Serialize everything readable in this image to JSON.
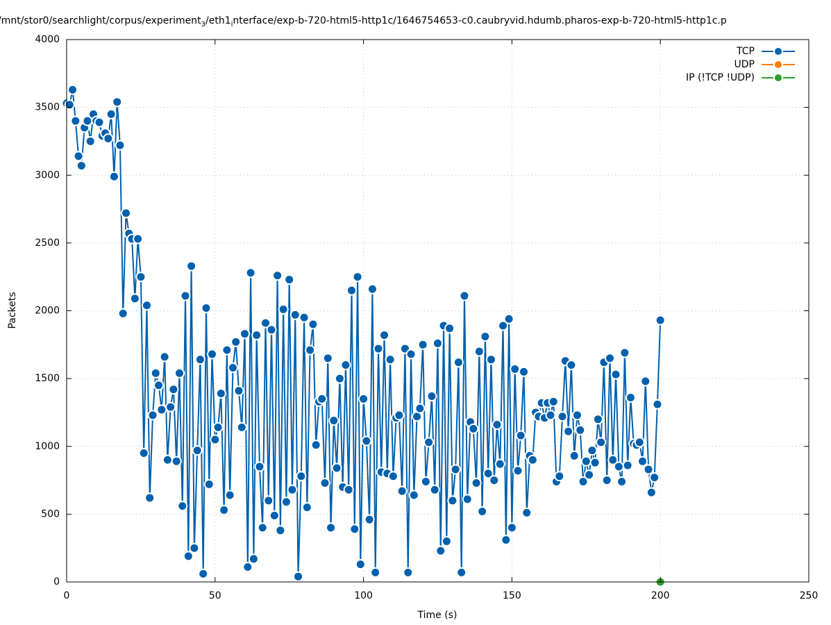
{
  "chart_data": {
    "type": "line",
    "title": [
      "/mnt/stor0/searchlight/corpus/experiment",
      "3",
      "/eth1",
      "i",
      "nterface/exp-b-720-html5-http1c/1646754653-c0.caubryvid.hdumb.pharos-exp-b-720-html5-http1c.p"
    ],
    "x_label": "Time (s)",
    "y_label": "Packets",
    "xlim": [
      0,
      250
    ],
    "xticks": [
      0,
      50,
      100,
      150,
      200,
      250
    ],
    "ylim": [
      0,
      4000
    ],
    "yticks": [
      0,
      500,
      1000,
      1500,
      2000,
      2500,
      3000,
      3500,
      4000
    ],
    "grid": true,
    "legend": "top-right",
    "series": [
      {
        "name": "TCP",
        "color": "#0060ad",
        "x": [
          0,
          1,
          2,
          3,
          4,
          5,
          6,
          7,
          8,
          9,
          10,
          11,
          12,
          13,
          14,
          15,
          16,
          17,
          18,
          19,
          20,
          21,
          22,
          23,
          24,
          25,
          26,
          27,
          28,
          29,
          30,
          31,
          32,
          33,
          34,
          35,
          36,
          37,
          38,
          39,
          40,
          41,
          42,
          43,
          44,
          45,
          46,
          47,
          48,
          49,
          50,
          51,
          52,
          53,
          54,
          55,
          56,
          57,
          58,
          59,
          60,
          61,
          62,
          63,
          64,
          65,
          66,
          67,
          68,
          69,
          70,
          71,
          72,
          73,
          74,
          75,
          76,
          77,
          78,
          79,
          80,
          81,
          82,
          83,
          84,
          85,
          86,
          87,
          88,
          89,
          90,
          91,
          92,
          93,
          94,
          95,
          96,
          97,
          98,
          99,
          100,
          101,
          102,
          103,
          104,
          105,
          106,
          107,
          108,
          109,
          110,
          111,
          112,
          113,
          114,
          115,
          116,
          117,
          118,
          119,
          120,
          121,
          122,
          123,
          124,
          125,
          126,
          127,
          128,
          129,
          130,
          131,
          132,
          133,
          134,
          135,
          136,
          137,
          138,
          139,
          140,
          141,
          142,
          143,
          144,
          145,
          146,
          147,
          148,
          149,
          150,
          151,
          152,
          153,
          154,
          155,
          156,
          157,
          158,
          159,
          160,
          161,
          162,
          163,
          164,
          165,
          166,
          167,
          168,
          169,
          170,
          171,
          172,
          173,
          174,
          175,
          176,
          177,
          178,
          179,
          180,
          181,
          182,
          183,
          184,
          185,
          186,
          187,
          188,
          189,
          190,
          191,
          192,
          193,
          194,
          195,
          196,
          197,
          198,
          199,
          200
        ],
        "values": [
          3530,
          3520,
          3630,
          3400,
          3140,
          3070,
          3350,
          3400,
          3250,
          3450,
          3400,
          3390,
          3290,
          3310,
          3270,
          3450,
          2990,
          3540,
          3220,
          1980,
          2720,
          2570,
          2530,
          2090,
          2530,
          2250,
          950,
          2040,
          620,
          1230,
          1540,
          1450,
          1270,
          1660,
          900,
          1290,
          1420,
          890,
          1540,
          560,
          2110,
          190,
          2330,
          250,
          970,
          1640,
          60,
          2020,
          720,
          1680,
          1050,
          1140,
          1390,
          530,
          1710,
          640,
          1580,
          1770,
          1410,
          1140,
          1830,
          110,
          2280,
          170,
          1820,
          850,
          400,
          1910,
          600,
          1860,
          490,
          2260,
          380,
          2010,
          590,
          2230,
          680,
          1970,
          40,
          780,
          1950,
          550,
          1710,
          1900,
          1010,
          1330,
          1350,
          730,
          1650,
          400,
          1190,
          840,
          1500,
          700,
          1600,
          680,
          2150,
          390,
          2250,
          130,
          1350,
          1040,
          460,
          2160,
          70,
          1720,
          810,
          1820,
          800,
          1640,
          780,
          1210,
          1230,
          670,
          1720,
          70,
          1680,
          640,
          1220,
          1280,
          1750,
          740,
          1030,
          1370,
          680,
          1760,
          230,
          1890,
          300,
          1870,
          600,
          830,
          1620,
          70,
          2110,
          610,
          1180,
          1130,
          730,
          1700,
          520,
          1810,
          800,
          1640,
          750,
          1160,
          870,
          1890,
          310,
          1940,
          400,
          1570,
          820,
          1080,
          1550,
          510,
          930,
          900,
          1250,
          1220,
          1320,
          1210,
          1320,
          1230,
          1330,
          740,
          780,
          1220,
          1630,
          1110,
          1600,
          930,
          1230,
          1120,
          740,
          890,
          790,
          970,
          880,
          1200,
          1030,
          1620,
          750,
          1650,
          900,
          1530,
          850,
          740,
          1690,
          860,
          1360,
          1020,
          1010,
          1030,
          890,
          1480,
          830,
          660,
          770,
          1310,
          1930
        ]
      },
      {
        "name": "UDP",
        "color": "#ff7f0e",
        "x": [
          200
        ],
        "values": [
          0
        ]
      },
      {
        "name": "IP (!TCP  !UDP)",
        "color": "#2ca02c",
        "x": [
          200
        ],
        "values": [
          0
        ]
      }
    ]
  }
}
